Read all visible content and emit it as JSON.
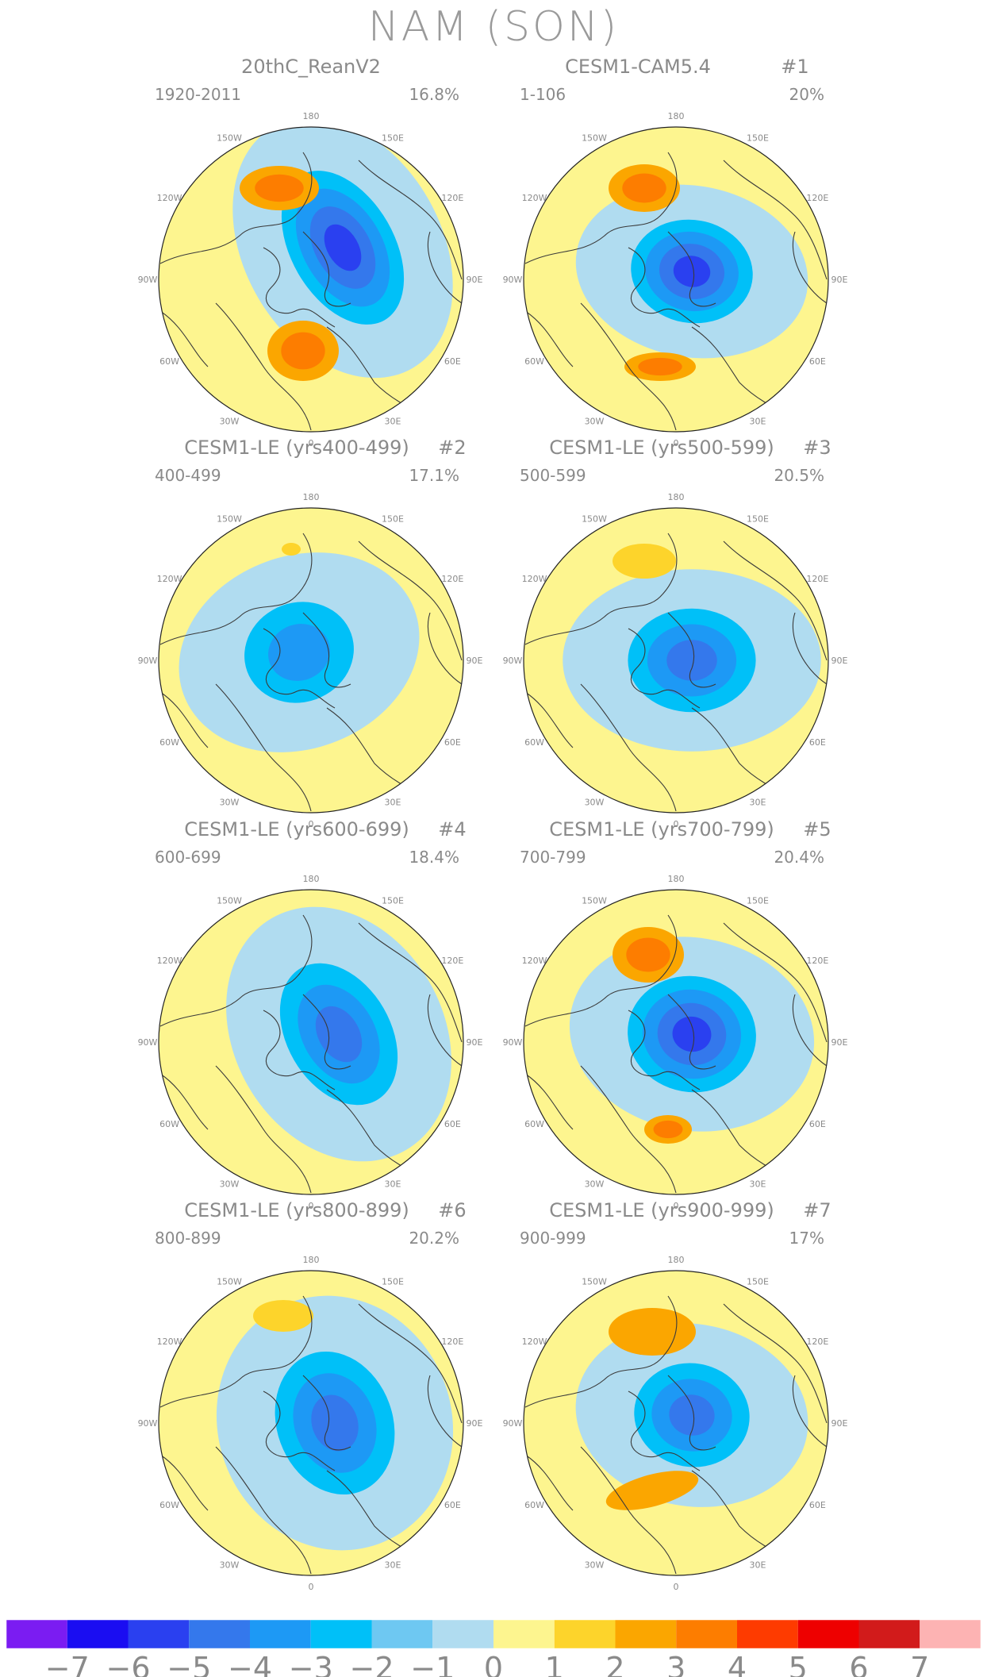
{
  "figure_title": "NAM (SON)",
  "colors": {
    "ocean": "#b0dcf0",
    "neutral": "#fdf58f",
    "coast": "#3a3a3a",
    "levels": [
      "#7b1cf2",
      "#1a0df2",
      "#2a40f0",
      "#3478ec",
      "#1d99f5",
      "#00c0f8",
      "#6ec8f2",
      "#b0dcf0",
      "#fdf58f",
      "#fdd42b",
      "#fba600",
      "#fd7d00",
      "#fe3b00",
      "#ee0000",
      "#d21b1b",
      "#fdb3b3"
    ]
  },
  "chart_data": {
    "type": "heatmap",
    "title": "NAM (SON)",
    "projection": "North polar stereographic",
    "longitude_labels": [
      "180",
      "150E",
      "120E",
      "90E",
      "60E",
      "30E",
      "0",
      "30W",
      "60W",
      "90W",
      "120W",
      "150W"
    ],
    "colorbar": {
      "tick_labels": [
        "-7",
        "-6",
        "-5",
        "-4",
        "-3",
        "-2",
        "-1",
        "0",
        "1",
        "2",
        "3",
        "4",
        "5",
        "6",
        "7"
      ],
      "levels": [
        -7,
        -6,
        -5,
        -4,
        -3,
        -2,
        -1,
        0,
        1,
        2,
        3,
        4,
        5,
        6,
        7
      ]
    },
    "panels": [
      {
        "title": "20thC_ReanV2",
        "run": "",
        "period": "1920-2011",
        "variance": "16.8%",
        "min_level": -5,
        "max_level": 3
      },
      {
        "title": "CESM1-CAM5.4",
        "run": "#1",
        "period": "1-106",
        "variance": "20%",
        "min_level": -5,
        "max_level": 3
      },
      {
        "title": "CESM1-LE (yrs400-499)",
        "run": "#2",
        "period": "400-499",
        "variance": "17.1%",
        "min_level": -3,
        "max_level": 1
      },
      {
        "title": "CESM1-LE (yrs500-599)",
        "run": "#3",
        "period": "500-599",
        "variance": "20.5%",
        "min_level": -4,
        "max_level": 1
      },
      {
        "title": "CESM1-LE (yrs600-699)",
        "run": "#4",
        "period": "600-699",
        "variance": "18.4%",
        "min_level": -4,
        "max_level": 0
      },
      {
        "title": "CESM1-LE (yrs700-799)",
        "run": "#5",
        "period": "700-799",
        "variance": "20.4%",
        "min_level": -5,
        "max_level": 3
      },
      {
        "title": "CESM1-LE (yrs800-899)",
        "run": "#6",
        "period": "800-899",
        "variance": "20.2%",
        "min_level": -4,
        "max_level": 1
      },
      {
        "title": "CESM1-LE (yrs900-999)",
        "run": "#7",
        "period": "900-999",
        "variance": "17%",
        "min_level": -4,
        "max_level": 2
      }
    ]
  }
}
